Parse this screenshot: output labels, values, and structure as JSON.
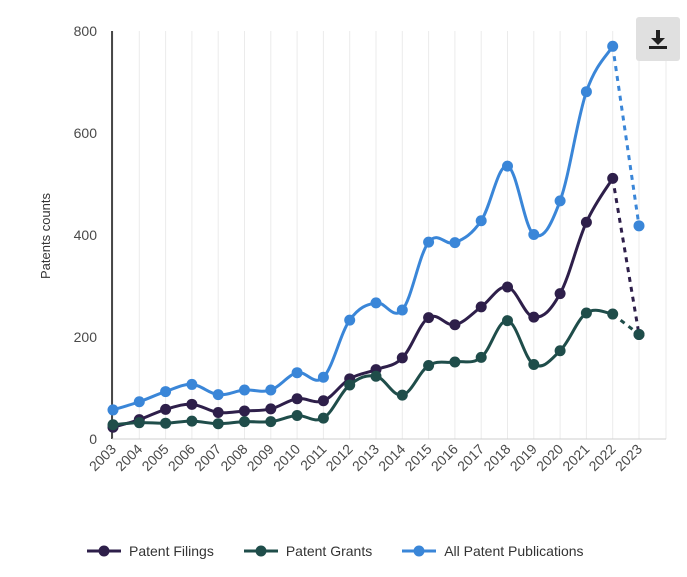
{
  "chart_data": {
    "type": "line",
    "ylabel": "Patents counts",
    "xlabel": "",
    "ylim": [
      0,
      800
    ],
    "yticks": [
      0,
      200,
      400,
      600,
      800
    ],
    "grid": "vertical",
    "legend_position": "bottom",
    "categories": [
      "2003",
      "2004",
      "2005",
      "2006",
      "2007",
      "2008",
      "2009",
      "2010",
      "2011",
      "2012",
      "2013",
      "2014",
      "2015",
      "2016",
      "2017",
      "2018",
      "2019",
      "2020",
      "2021",
      "2022",
      "2023"
    ],
    "series": [
      {
        "name": "Patent Filings",
        "color": "#2e1f4a",
        "values": [
          23,
          38,
          58,
          68,
          52,
          55,
          59,
          79,
          75,
          118,
          136,
          159,
          238,
          224,
          259,
          298,
          239,
          285,
          425,
          511,
          205
        ]
      },
      {
        "name": "Patent Grants",
        "color": "#1f4d4a",
        "values": [
          28,
          32,
          31,
          35,
          30,
          34,
          34,
          46,
          41,
          106,
          123,
          86,
          144,
          151,
          160,
          232,
          146,
          173,
          247,
          245,
          205
        ]
      },
      {
        "name": "All Patent Publications",
        "color": "#3a86d8",
        "values": [
          57,
          73,
          93,
          107,
          87,
          96,
          96,
          130,
          121,
          233,
          267,
          253,
          386,
          385,
          428,
          535,
          401,
          467,
          681,
          770,
          418
        ]
      }
    ],
    "dashed_from": "2022"
  },
  "toolbar": {
    "download_icon": "download-icon"
  }
}
